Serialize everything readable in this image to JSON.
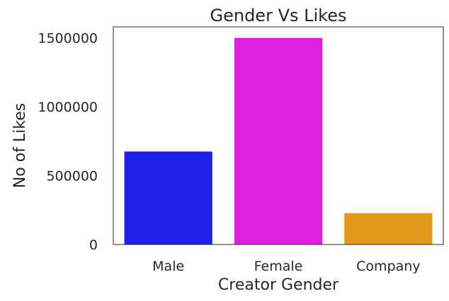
{
  "chart_data": {
    "type": "bar",
    "title": "Gender Vs Likes",
    "xlabel": "Creator Gender",
    "ylabel": "No of Likes",
    "categories": [
      "Male",
      "Female",
      "Company"
    ],
    "values": [
      675000,
      1500000,
      228000
    ],
    "colors": [
      "#1f1fe6",
      "#e020e0",
      "#e59a1e"
    ],
    "ylim": [
      0,
      1580000
    ],
    "yticks": [
      0,
      500000,
      1000000,
      1500000
    ],
    "ytick_labels": [
      "0",
      "500000",
      "1000000",
      "1500000"
    ],
    "grid": false,
    "legend": "none"
  }
}
